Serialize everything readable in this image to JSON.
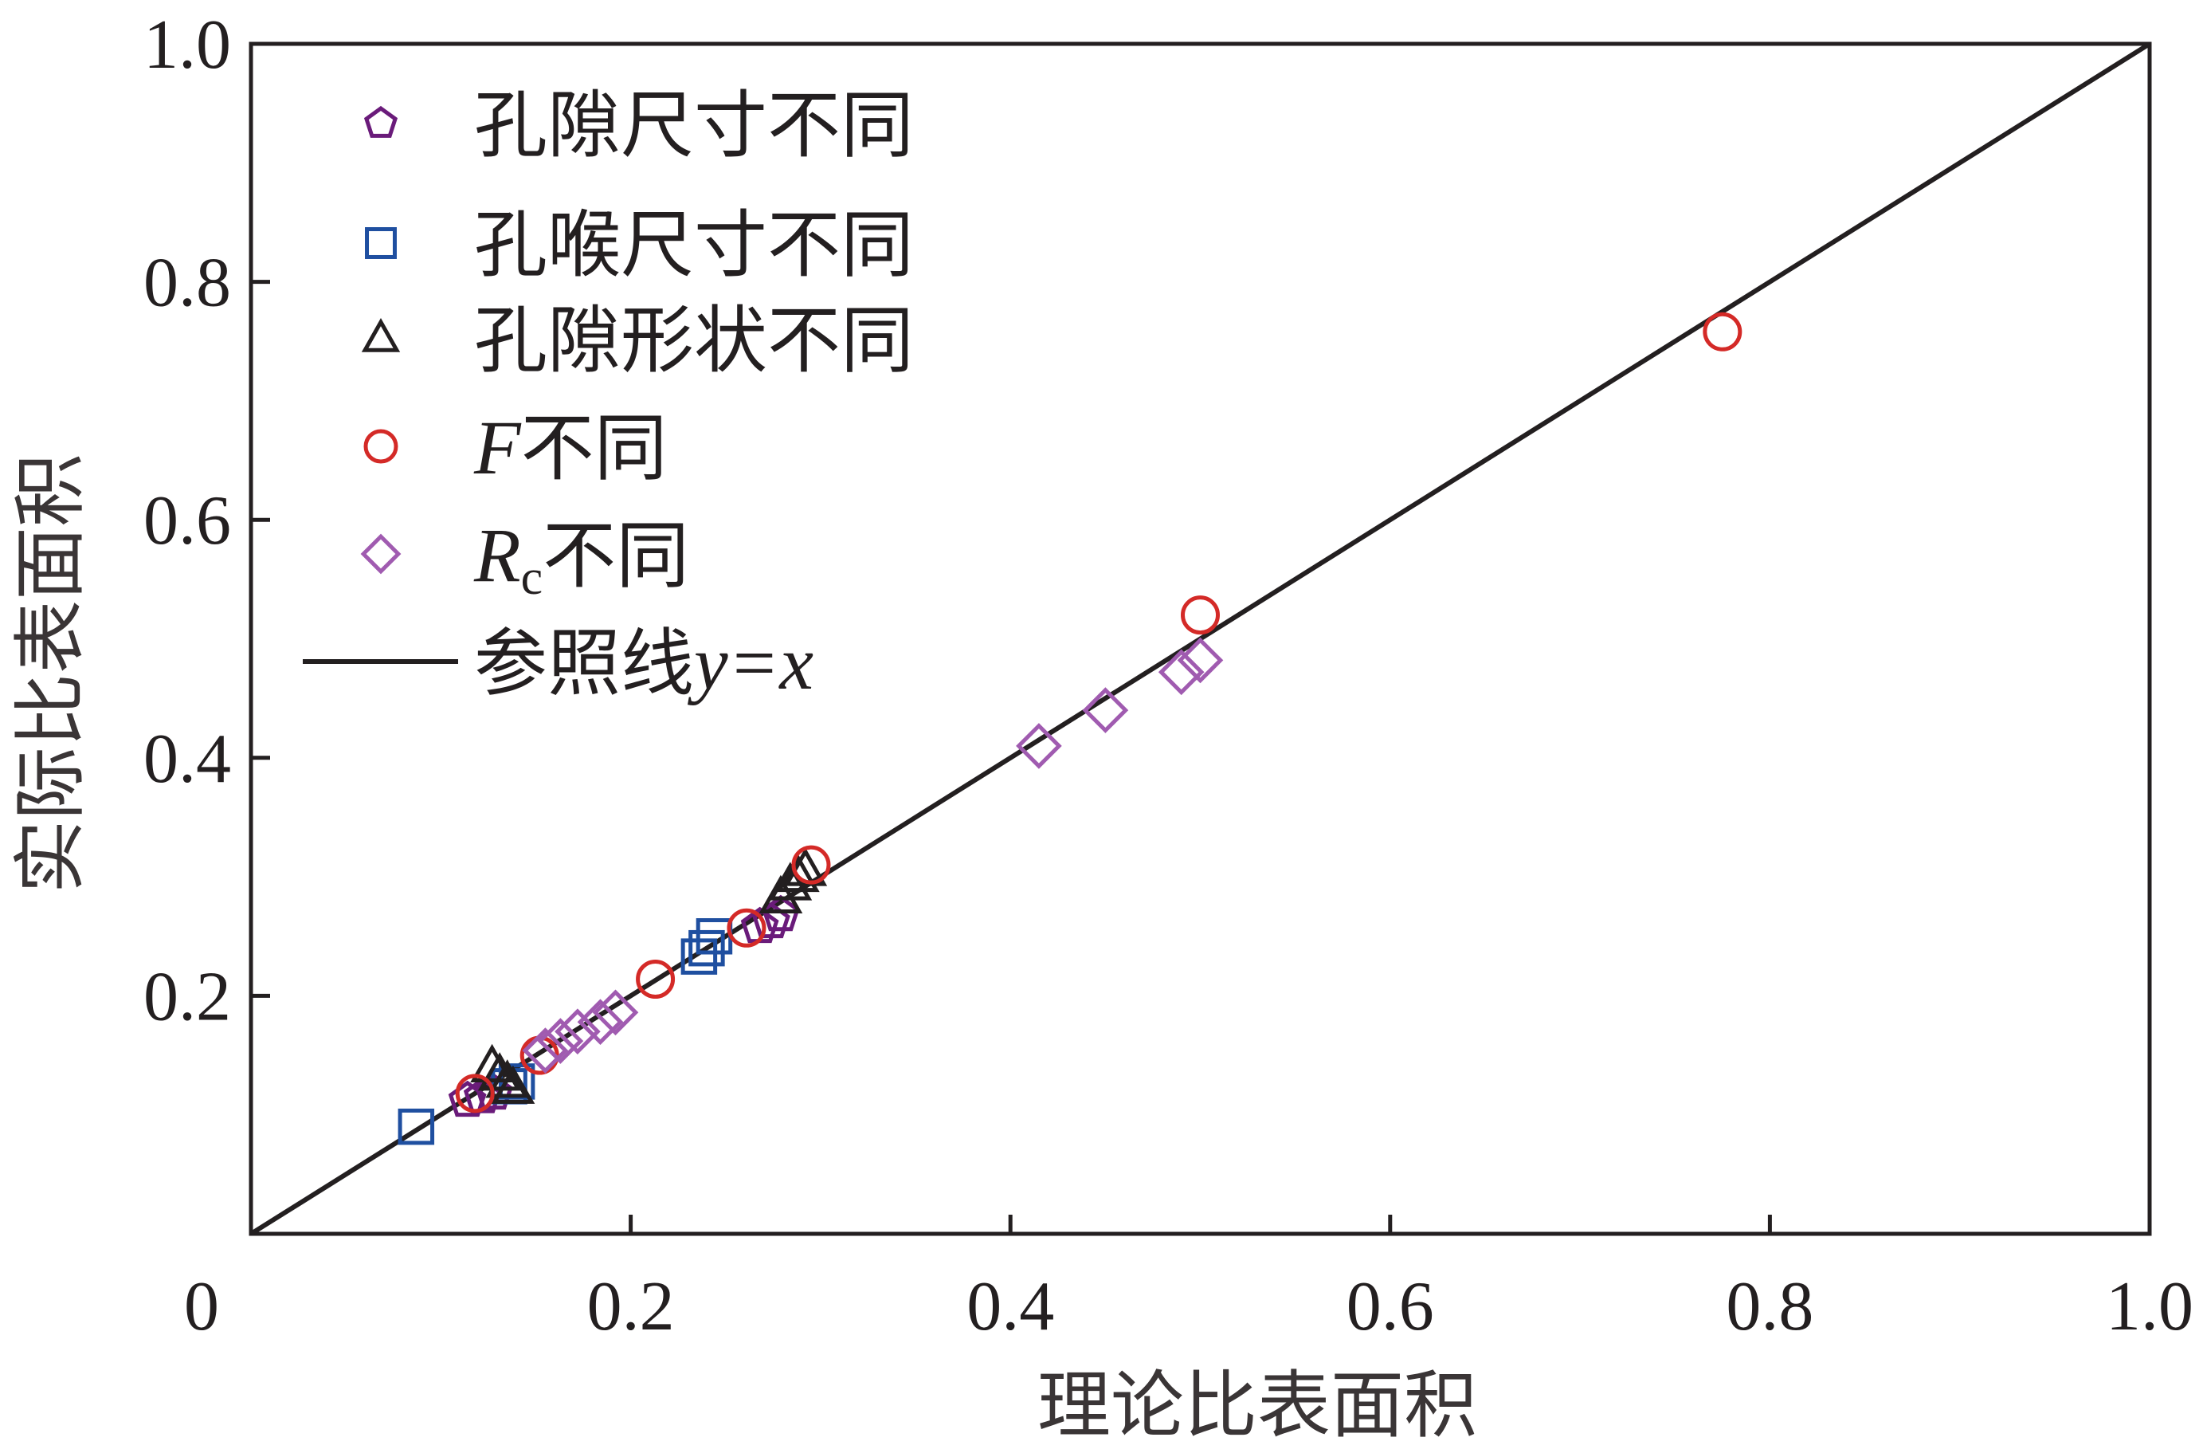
{
  "chart_data": {
    "type": "scatter",
    "xlabel": "理论比表面积",
    "ylabel": "实际比表面积",
    "xlim": [
      0,
      1.0
    ],
    "ylim": [
      0,
      1.0
    ],
    "x_ticks": [
      {
        "value": 0,
        "label": "0"
      },
      {
        "value": 0.2,
        "label": "0.2"
      },
      {
        "value": 0.4,
        "label": "0.4"
      },
      {
        "value": 0.6,
        "label": "0.6"
      },
      {
        "value": 0.8,
        "label": "0.8"
      },
      {
        "value": 1.0,
        "label": "1.0"
      }
    ],
    "y_ticks": [
      {
        "value": 0.2,
        "label": "0.2"
      },
      {
        "value": 0.4,
        "label": "0.4"
      },
      {
        "value": 0.6,
        "label": "0.6"
      },
      {
        "value": 0.8,
        "label": "0.8"
      },
      {
        "value": 1.0,
        "label": "1.0"
      }
    ],
    "grid": false,
    "legend_position": "top-left",
    "series": [
      {
        "name": "孔隙尺寸不同",
        "marker": "pentagon",
        "color": "#6a1b7a",
        "points": [
          [
            0.114,
            0.112
          ],
          [
            0.122,
            0.115
          ],
          [
            0.128,
            0.118
          ],
          [
            0.268,
            0.258
          ],
          [
            0.274,
            0.262
          ],
          [
            0.279,
            0.268
          ]
        ]
      },
      {
        "name": "孔喉尺寸不同",
        "marker": "square",
        "color": "#1f4fa0",
        "points": [
          [
            0.087,
            0.09
          ],
          [
            0.136,
            0.124
          ],
          [
            0.14,
            0.128
          ],
          [
            0.236,
            0.233
          ],
          [
            0.24,
            0.24
          ],
          [
            0.244,
            0.25
          ]
        ]
      },
      {
        "name": "孔隙形状不同",
        "marker": "triangle",
        "color": "#231f20",
        "points": [
          [
            0.127,
            0.14
          ],
          [
            0.131,
            0.133
          ],
          [
            0.135,
            0.127
          ],
          [
            0.138,
            0.122
          ],
          [
            0.279,
            0.282
          ],
          [
            0.284,
            0.293
          ],
          [
            0.288,
            0.3
          ],
          [
            0.292,
            0.305
          ]
        ]
      },
      {
        "name": "F不同",
        "label_parts": [
          "F",
          "不同"
        ],
        "marker": "circle",
        "color": "#d42a27",
        "points": [
          [
            0.118,
            0.118
          ],
          [
            0.152,
            0.15
          ],
          [
            0.213,
            0.214
          ],
          [
            0.261,
            0.257
          ],
          [
            0.295,
            0.31
          ],
          [
            0.5,
            0.52
          ],
          [
            0.775,
            0.758
          ]
        ]
      },
      {
        "name": "Rc不同",
        "label_parts": [
          "R",
          "c",
          "不同"
        ],
        "marker": "diamond",
        "color": "#a05bb0",
        "points": [
          [
            0.155,
            0.154
          ],
          [
            0.163,
            0.162
          ],
          [
            0.172,
            0.17
          ],
          [
            0.184,
            0.178
          ],
          [
            0.192,
            0.186
          ],
          [
            0.415,
            0.41
          ],
          [
            0.45,
            0.44
          ],
          [
            0.49,
            0.472
          ],
          [
            0.5,
            0.482
          ]
        ]
      }
    ],
    "reference_line": {
      "name": "参照线y=x",
      "label_parts": [
        "参照线",
        "y",
        "=",
        "x"
      ],
      "color": "#231f20",
      "points": [
        [
          0,
          0
        ],
        [
          1.0,
          1.0
        ]
      ]
    }
  }
}
